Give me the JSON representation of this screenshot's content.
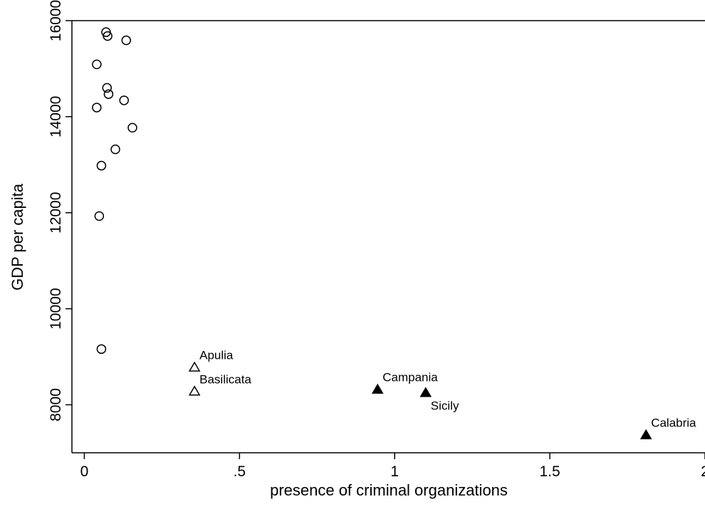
{
  "chart_data": {
    "type": "scatter",
    "xlabel": "presence of criminal organizations",
    "ylabel": "GDP per capita",
    "xlim": [
      -0.04,
      2.0
    ],
    "ylim": [
      7000,
      16000
    ],
    "x_ticks": [
      {
        "value": 0,
        "label": "0"
      },
      {
        "value": 0.5,
        "label": ".5"
      },
      {
        "value": 1,
        "label": "1"
      },
      {
        "value": 1.5,
        "label": "1.5"
      },
      {
        "value": 2,
        "label": "2"
      }
    ],
    "y_ticks": [
      {
        "value": 8000,
        "label": "8000"
      },
      {
        "value": 10000,
        "label": "10000"
      },
      {
        "value": 12000,
        "label": "12000"
      },
      {
        "value": 14000,
        "label": "14000"
      },
      {
        "value": 16000,
        "label": "16000"
      }
    ],
    "grid": false,
    "series": [
      {
        "marker": "hollow-circle",
        "points": [
          {
            "x": 0.07,
            "y": 15760
          },
          {
            "x": 0.075,
            "y": 15680
          },
          {
            "x": 0.135,
            "y": 15590
          },
          {
            "x": 0.04,
            "y": 15090
          },
          {
            "x": 0.073,
            "y": 14600
          },
          {
            "x": 0.078,
            "y": 14470
          },
          {
            "x": 0.128,
            "y": 14340
          },
          {
            "x": 0.04,
            "y": 14190
          },
          {
            "x": 0.155,
            "y": 13770
          },
          {
            "x": 0.1,
            "y": 13320
          },
          {
            "x": 0.055,
            "y": 12980
          },
          {
            "x": 0.048,
            "y": 11930
          },
          {
            "x": 0.055,
            "y": 9160
          }
        ]
      },
      {
        "marker": "hollow-triangle",
        "points": [
          {
            "x": 0.355,
            "y": 8770,
            "label": "Apulia",
            "label_pos": "above-right"
          },
          {
            "x": 0.355,
            "y": 8270,
            "label": "Basilicata",
            "label_pos": "above-right"
          }
        ]
      },
      {
        "marker": "filled-triangle",
        "points": [
          {
            "x": 0.945,
            "y": 8310,
            "label": "Campania",
            "label_pos": "above-right"
          },
          {
            "x": 1.1,
            "y": 8240,
            "label": "Sicily",
            "label_pos": "below-right"
          },
          {
            "x": 1.81,
            "y": 7360,
            "label": "Calabria",
            "label_pos": "above-right"
          }
        ]
      }
    ]
  }
}
